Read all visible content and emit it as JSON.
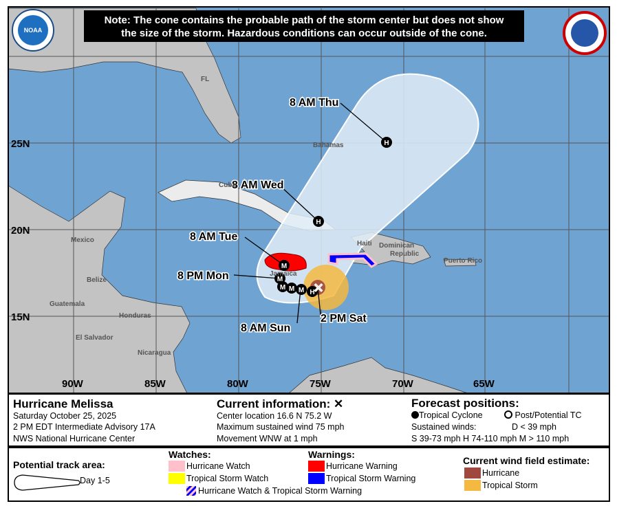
{
  "note": {
    "line1": "Note: The cone contains the probable path of the storm center but does not show",
    "line2": "the size of the storm. Hazardous conditions can occur outside of the cone."
  },
  "logos": {
    "left": "NOAA",
    "right": "NATIONAL WEATHER SERVICE"
  },
  "map": {
    "lon_labels": [
      "90W",
      "85W",
      "80W",
      "75W",
      "70W",
      "65W"
    ],
    "lat_labels": [
      "25N",
      "20N",
      "15N"
    ],
    "places": [
      "FL",
      "Bahamas",
      "Cuba",
      "Mexico",
      "Belize",
      "Guatemala",
      "Honduras",
      "El Salvador",
      "Nicaragua",
      "Jamaica",
      "Haiti",
      "Dominican",
      "Republic",
      "Puerto Rico"
    ],
    "track_labels": [
      "8 AM Thu",
      "8 AM Wed",
      "8 AM Tue",
      "8 PM Mon",
      "8 AM Sun",
      "2 PM Sat"
    ],
    "markers": {
      "major": "M",
      "hurricane": "H"
    },
    "colors": {
      "ocean": "#6fa3d2",
      "land": "#c3c3c3",
      "cone": "#e2edf7",
      "hurricane_warning": "#ff0000",
      "ts_warning": "#0000ff",
      "hurricane_watch": "#ffc0cb",
      "ts_watch": "#ffff00",
      "hurricane_wind": "#a0483e",
      "ts_wind": "#f5b941"
    }
  },
  "info": {
    "storm_name": "Hurricane Melissa",
    "date": "Saturday October 25, 2025",
    "advisory": "2 PM EDT Intermediate Advisory 17A",
    "center": "NWS National Hurricane Center",
    "current_title": "Current information:",
    "current_icon": "✕",
    "location": "Center location 16.6 N 75.2 W",
    "wind": "Maximum sustained wind 75 mph",
    "movement": "Movement WNW at 1 mph",
    "forecast_title": "Forecast positions:",
    "tc": "Tropical Cyclone",
    "post_tc": "Post/Potential TC",
    "sustained": "Sustained winds:",
    "d": "D < 39 mph",
    "categories": "S 39-73 mph  H 74-110 mph  M > 110 mph"
  },
  "legend": {
    "track_area_title": "Potential track area:",
    "day": "Day 1-5",
    "watches_title": "Watches:",
    "hurricane_watch": "Hurricane Watch",
    "ts_watch": "Tropical Storm Watch",
    "combo": "Hurricane Watch & Tropical Storm Warning",
    "warnings_title": "Warnings:",
    "hurricane_warning": "Hurricane Warning",
    "ts_warning": "Tropical Storm Warning",
    "wind_title": "Current wind field estimate:",
    "wind_hurricane": "Hurricane",
    "wind_ts": "Tropical Storm"
  }
}
